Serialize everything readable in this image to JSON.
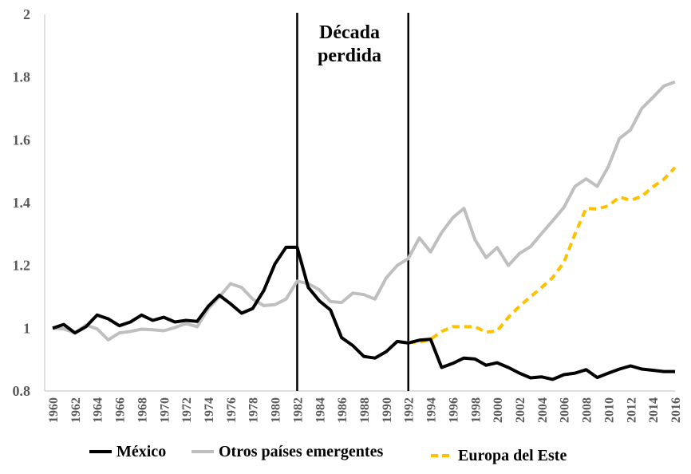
{
  "chart_data": {
    "type": "line",
    "title": "",
    "xlabel": "",
    "ylabel": "",
    "ylim": [
      0.8,
      2.0
    ],
    "yticks": [
      "0.8",
      "1",
      "1.2",
      "1.4",
      "1.6",
      "1.8",
      "2"
    ],
    "ytick_values": [
      0.8,
      1.0,
      1.2,
      1.4,
      1.6,
      1.8,
      2.0
    ],
    "xlim": [
      1960,
      2016
    ],
    "xticks": [
      1960,
      1962,
      1964,
      1966,
      1968,
      1970,
      1972,
      1974,
      1976,
      1978,
      1980,
      1982,
      1984,
      1986,
      1988,
      1990,
      1992,
      1994,
      1996,
      1998,
      2000,
      2002,
      2004,
      2006,
      2008,
      2010,
      2012,
      2014,
      2016
    ],
    "grid": false,
    "legend_position": "bottom",
    "vertical_lines": [
      1982,
      1992
    ],
    "annotation": {
      "line1": "Década",
      "line2": "perdida"
    },
    "series": [
      {
        "name": "México",
        "color": "#000000",
        "style": "solid",
        "x": [
          1960,
          1961,
          1962,
          1963,
          1964,
          1965,
          1966,
          1967,
          1968,
          1969,
          1970,
          1971,
          1972,
          1973,
          1974,
          1975,
          1976,
          1977,
          1978,
          1979,
          1980,
          1981,
          1982,
          1983,
          1984,
          1985,
          1986,
          1987,
          1988,
          1989,
          1990,
          1991,
          1992,
          1993,
          1994,
          1995,
          1996,
          1997,
          1998,
          1999,
          2000,
          2001,
          2002,
          2003,
          2004,
          2005,
          2006,
          2007,
          2008,
          2009,
          2010,
          2011,
          2012,
          2013,
          2014,
          2015,
          2016
        ],
        "values": [
          1.0,
          1.012,
          0.985,
          1.005,
          1.042,
          1.03,
          1.008,
          1.02,
          1.042,
          1.025,
          1.035,
          1.02,
          1.025,
          1.022,
          1.07,
          1.105,
          1.078,
          1.048,
          1.063,
          1.12,
          1.205,
          1.258,
          1.258,
          1.13,
          1.087,
          1.058,
          0.97,
          0.945,
          0.91,
          0.905,
          0.925,
          0.958,
          0.953,
          0.962,
          0.965,
          0.875,
          0.888,
          0.905,
          0.902,
          0.882,
          0.89,
          0.875,
          0.857,
          0.842,
          0.845,
          0.837,
          0.852,
          0.857,
          0.868,
          0.843,
          0.857,
          0.87,
          0.88,
          0.87,
          0.866,
          0.862,
          0.862
        ]
      },
      {
        "name": "Otros países emergentes",
        "color": "#bfbfbf",
        "style": "solid",
        "x": [
          1960,
          1961,
          1962,
          1963,
          1964,
          1965,
          1966,
          1967,
          1968,
          1969,
          1970,
          1971,
          1972,
          1973,
          1974,
          1975,
          1976,
          1977,
          1978,
          1979,
          1980,
          1981,
          1982,
          1983,
          1984,
          1985,
          1986,
          1987,
          1988,
          1989,
          1990,
          1991,
          1992,
          1993,
          1994,
          1995,
          1996,
          1997,
          1998,
          1999,
          2000,
          2001,
          2002,
          2003,
          2004,
          2005,
          2006,
          2007,
          2008,
          2009,
          2010,
          2011,
          2012,
          2013,
          2014,
          2015,
          2016
        ],
        "values": [
          1.0,
          0.998,
          0.985,
          1.01,
          0.998,
          0.963,
          0.985,
          0.99,
          0.997,
          0.995,
          0.992,
          1.002,
          1.015,
          1.005,
          1.062,
          1.1,
          1.142,
          1.13,
          1.093,
          1.072,
          1.075,
          1.093,
          1.15,
          1.142,
          1.122,
          1.085,
          1.082,
          1.112,
          1.107,
          1.093,
          1.16,
          1.2,
          1.222,
          1.288,
          1.243,
          1.305,
          1.352,
          1.382,
          1.282,
          1.225,
          1.257,
          1.2,
          1.238,
          1.26,
          1.302,
          1.343,
          1.385,
          1.452,
          1.476,
          1.452,
          1.515,
          1.605,
          1.632,
          1.7,
          1.735,
          1.772,
          1.785
        ]
      },
      {
        "name": "Europa del Este",
        "color": "#ffc000",
        "style": "dashed",
        "x": [
          1992,
          1993,
          1994,
          1995,
          1996,
          1997,
          1998,
          1999,
          2000,
          2001,
          2002,
          2003,
          2004,
          2005,
          2006,
          2007,
          2008,
          2009,
          2010,
          2011,
          2012,
          2013,
          2014,
          2015,
          2016
        ],
        "values": [
          0.955,
          0.955,
          0.965,
          0.99,
          1.005,
          1.005,
          1.005,
          0.987,
          0.992,
          1.035,
          1.07,
          1.1,
          1.13,
          1.162,
          1.21,
          1.3,
          1.382,
          1.38,
          1.39,
          1.418,
          1.408,
          1.42,
          1.45,
          1.475,
          1.512
        ]
      }
    ]
  }
}
